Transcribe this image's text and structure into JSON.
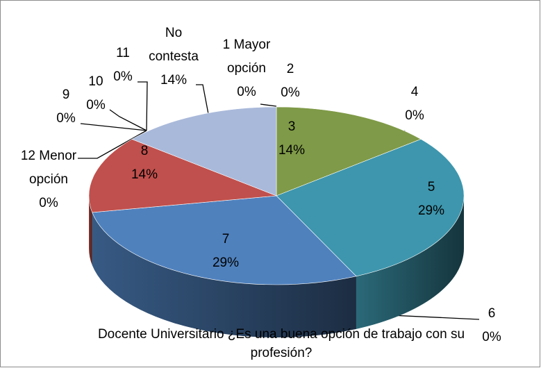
{
  "chart_data": {
    "type": "pie3d",
    "title": "Docente Universitario ¿Es una buena opción de trabajo con su profesión?",
    "categories": [
      "1 Mayor opción",
      "2",
      "3",
      "4",
      "5",
      "6",
      "7",
      "8",
      "9",
      "10",
      "11",
      "12 Menor opción",
      "No contesta"
    ],
    "values": [
      0,
      0,
      14,
      0,
      29,
      0,
      29,
      14,
      0,
      0,
      0,
      0,
      14
    ],
    "value_labels": [
      "0%",
      "0%",
      "14%",
      "0%",
      "29%",
      "0%",
      "29%",
      "14%",
      "0%",
      "0%",
      "0%",
      "0%",
      "14%"
    ],
    "colors": [
      "#4f81bd",
      "#c0504d",
      "#7f9a48",
      "#8064a2",
      "#3d96ad",
      "#f79646",
      "#4f81bd",
      "#c0504d",
      "#9bbb59",
      "#8064a2",
      "#4bacc6",
      "#f79646",
      "#a9b9da"
    ]
  }
}
